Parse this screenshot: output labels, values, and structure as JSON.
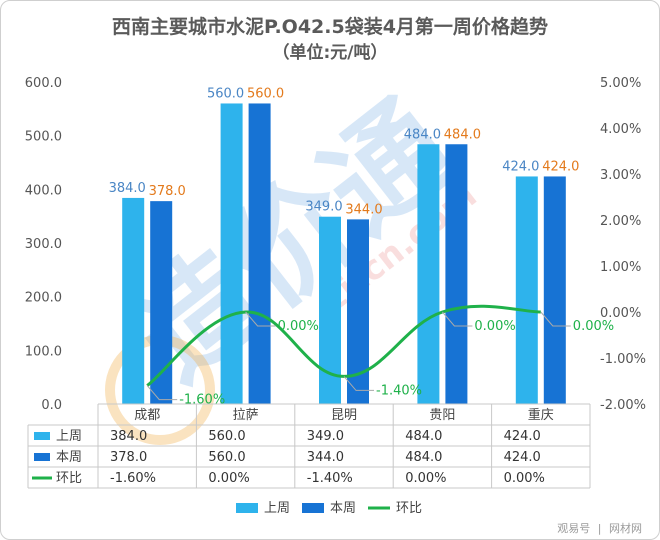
{
  "chart_data": {
    "type": "bar",
    "title": "西南主要城市水泥P.O42.5袋装4月第一周价格趋势",
    "subtitle": "（单位:元/吨）",
    "categories": [
      "成都",
      "拉萨",
      "昆明",
      "贵阳",
      "重庆"
    ],
    "series": [
      {
        "name": "上周",
        "type": "bar",
        "axis": "left",
        "color": "#2eb3ec",
        "values": [
          384.0,
          560.0,
          349.0,
          484.0,
          424.0
        ],
        "labels": [
          "384.0",
          "560.0",
          "349.0",
          "484.0",
          "424.0"
        ],
        "label_color": "#4a86c5"
      },
      {
        "name": "本周",
        "type": "bar",
        "axis": "left",
        "color": "#1773d4",
        "values": [
          378.0,
          560.0,
          344.0,
          484.0,
          424.0
        ],
        "labels": [
          "378.0",
          "560.0",
          "344.0",
          "484.0",
          "424.0"
        ],
        "label_color": "#e37a1c"
      },
      {
        "name": "环比",
        "type": "line",
        "axis": "right",
        "color": "#1fb14a",
        "values": [
          -1.6,
          0.0,
          -1.4,
          0.0,
          0.0
        ],
        "labels": [
          "-1.60%",
          "0.00%",
          "-1.40%",
          "0.00%",
          "0.00%"
        ],
        "table_values": [
          "-1.60%",
          "0.00%",
          "-1.40%",
          "0.00%",
          "0.00%"
        ]
      }
    ],
    "table_values": {
      "上周": [
        "384.0",
        "560.0",
        "349.0",
        "484.0",
        "424.0"
      ],
      "本周": [
        "378.0",
        "560.0",
        "344.0",
        "484.0",
        "424.0"
      ]
    },
    "y_left": {
      "min": 0,
      "max": 600,
      "step": 100,
      "ticks": [
        "0.0",
        "100.0",
        "200.0",
        "300.0",
        "400.0",
        "500.0",
        "600.0"
      ]
    },
    "y_right": {
      "min": -2,
      "max": 5,
      "step": 1,
      "ticks": [
        "-2.00%",
        "-1.00%",
        "0.00%",
        "1.00%",
        "2.00%",
        "3.00%",
        "4.00%",
        "5.00%"
      ]
    },
    "legend_position": "bottom",
    "grid": false
  },
  "watermark": {
    "text": "zjtcn.com",
    "logo_text": "造价通"
  },
  "footer": {
    "left": "观易号",
    "sep": "|",
    "right": "网材网"
  }
}
